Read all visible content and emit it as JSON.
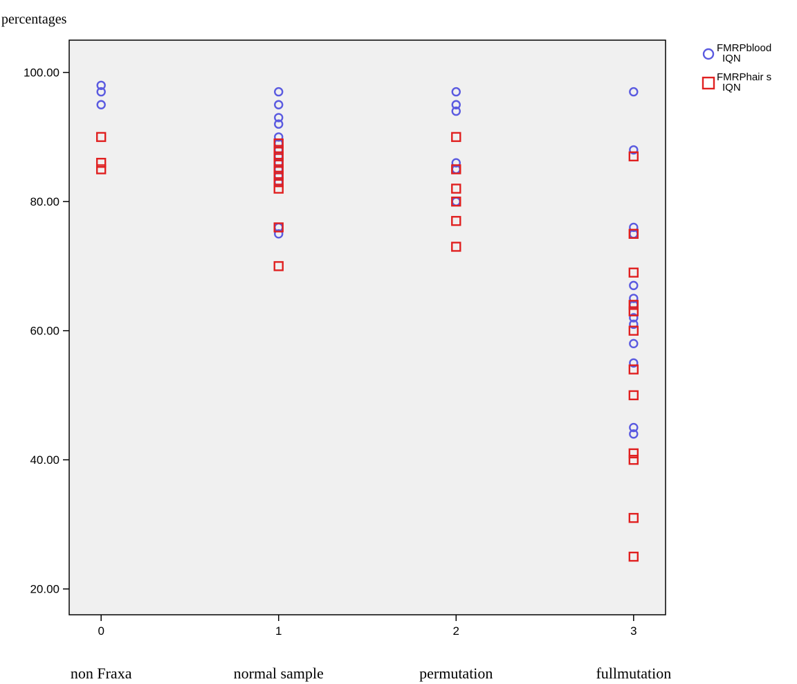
{
  "chart_data": {
    "type": "scatter",
    "ylabel": "percentages",
    "xlabel": "",
    "xlim": [
      -0.18,
      3.18
    ],
    "ylim": [
      16,
      105
    ],
    "x_ticks": [
      {
        "value": 0,
        "label": "0"
      },
      {
        "value": 1,
        "label": "1"
      },
      {
        "value": 2,
        "label": "2"
      },
      {
        "value": 3,
        "label": "3"
      }
    ],
    "y_ticks": [
      {
        "value": 20,
        "label": "20.00"
      },
      {
        "value": 40,
        "label": "40.00"
      },
      {
        "value": 60,
        "label": "60.00"
      },
      {
        "value": 80,
        "label": "80.00"
      },
      {
        "value": 100,
        "label": "100.00"
      }
    ],
    "group_labels": [
      {
        "x": 0,
        "label": "non Fraxa"
      },
      {
        "x": 1,
        "label": "normal sample"
      },
      {
        "x": 2,
        "label": "permutation"
      },
      {
        "x": 3,
        "label": "fullmutation"
      }
    ],
    "grid": false,
    "legend_position": "top-right",
    "colors": {
      "plot_background": "#f0f0f0",
      "circle": "#5a5ae0",
      "square": "#e02020"
    },
    "series": [
      {
        "name_line1": "FMRPblood",
        "name_line2": "IQN",
        "marker": "circle",
        "color": "#5a5ae0",
        "points": [
          [
            0,
            98
          ],
          [
            0,
            97
          ],
          [
            0,
            95
          ],
          [
            1,
            97
          ],
          [
            1,
            95
          ],
          [
            1,
            93
          ],
          [
            1,
            92
          ],
          [
            1,
            90
          ],
          [
            1,
            89
          ],
          [
            1,
            88
          ],
          [
            1,
            87
          ],
          [
            1,
            86
          ],
          [
            1,
            85
          ],
          [
            1,
            84
          ],
          [
            1,
            83
          ],
          [
            1,
            76
          ],
          [
            1,
            75
          ],
          [
            2,
            97
          ],
          [
            2,
            95
          ],
          [
            2,
            94
          ],
          [
            2,
            86
          ],
          [
            2,
            85
          ],
          [
            2,
            80
          ],
          [
            3,
            97
          ],
          [
            3,
            88
          ],
          [
            3,
            76
          ],
          [
            3,
            75
          ],
          [
            3,
            67
          ],
          [
            3,
            65
          ],
          [
            3,
            64
          ],
          [
            3,
            62
          ],
          [
            3,
            61
          ],
          [
            3,
            58
          ],
          [
            3,
            55
          ],
          [
            3,
            45
          ],
          [
            3,
            44
          ]
        ]
      },
      {
        "name_line1": "FMRPhair s",
        "name_line2": "IQN",
        "marker": "square",
        "color": "#e02020",
        "points": [
          [
            0,
            90
          ],
          [
            0,
            86
          ],
          [
            0,
            85
          ],
          [
            1,
            89
          ],
          [
            1,
            88
          ],
          [
            1,
            87
          ],
          [
            1,
            86
          ],
          [
            1,
            85
          ],
          [
            1,
            84
          ],
          [
            1,
            83
          ],
          [
            1,
            82
          ],
          [
            1,
            76
          ],
          [
            1,
            70
          ],
          [
            2,
            90
          ],
          [
            2,
            85
          ],
          [
            2,
            82
          ],
          [
            2,
            80
          ],
          [
            2,
            77
          ],
          [
            2,
            73
          ],
          [
            3,
            87
          ],
          [
            3,
            75
          ],
          [
            3,
            69
          ],
          [
            3,
            64
          ],
          [
            3,
            63
          ],
          [
            3,
            60
          ],
          [
            3,
            54
          ],
          [
            3,
            50
          ],
          [
            3,
            41
          ],
          [
            3,
            40
          ],
          [
            3,
            31
          ],
          [
            3,
            25
          ]
        ]
      }
    ]
  }
}
